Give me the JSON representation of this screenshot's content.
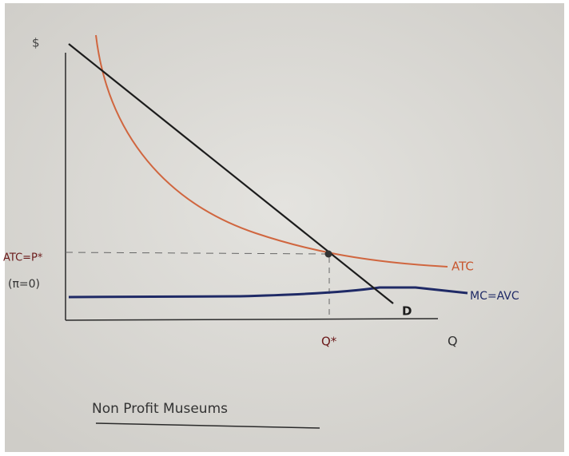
{
  "axes": {
    "y_label": "$",
    "x_label": "Q"
  },
  "curves": {
    "atc": "ATC",
    "mc": "MC=AVC",
    "demand": "D"
  },
  "equilibrium": {
    "price_label": "ATC=P*",
    "profit_label": "(π=0)",
    "quantity_label": "Q*"
  },
  "caption": "Non Profit Museums"
}
